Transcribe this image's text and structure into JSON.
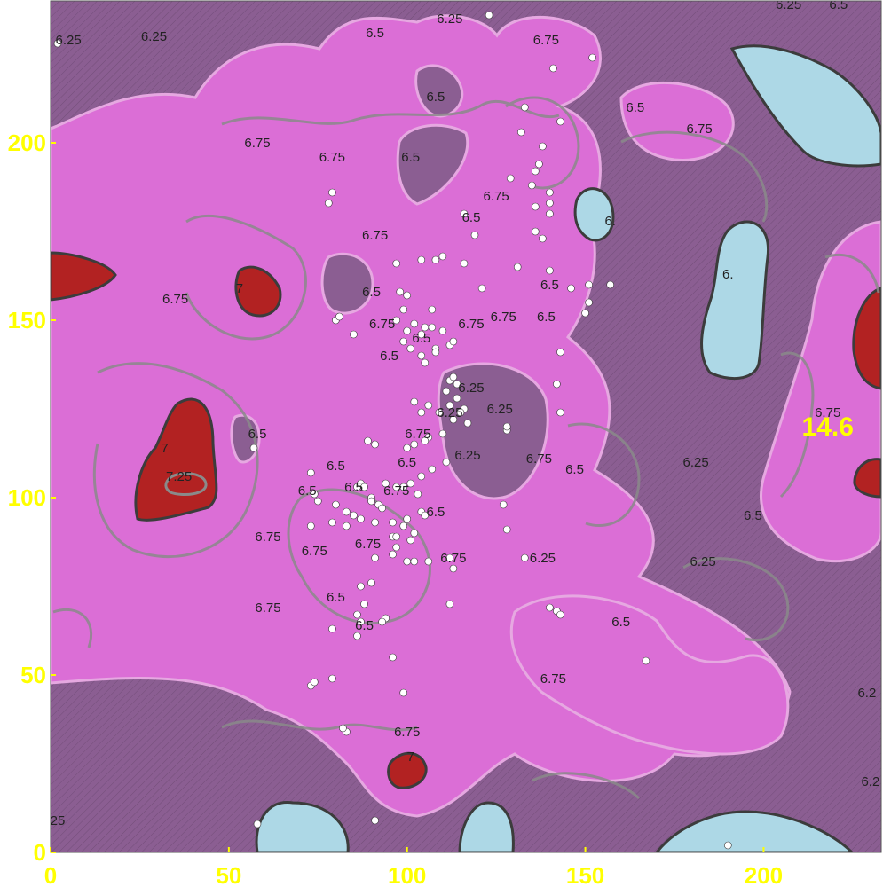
{
  "chart_data": {
    "type": "heatmap",
    "title": "",
    "xlabel": "",
    "ylabel": "",
    "xlim": [
      0,
      233
    ],
    "ylim": [
      0,
      240
    ],
    "x_ticks": [
      "0",
      "50",
      "100",
      "150",
      "200"
    ],
    "y_ticks": [
      "0",
      "50",
      "100",
      "150",
      "200"
    ],
    "annotation": {
      "text": "14.6",
      "x": 218,
      "y": 120
    },
    "colors": {
      "level_6": "#add8e6",
      "level_6_25": "#8b5e92",
      "level_6_5": "#db6ed6",
      "level_7": "#b22222",
      "contour_light": "#e6a8e1",
      "contour_gray": "#8a8a8a",
      "contour_dark": "#3c3c3c",
      "tick_label": "#ffff00",
      "points": "#ffffff"
    },
    "contour_levels": [
      "6",
      "6.25",
      "6.5",
      "6.75",
      "7",
      "7.25"
    ],
    "contour_labels": [
      {
        "text": "6.25",
        "x": 5,
        "y": 229
      },
      {
        "text": "6.25",
        "x": 29,
        "y": 230
      },
      {
        "text": "6.5",
        "x": 91,
        "y": 231
      },
      {
        "text": "6.25",
        "x": 112,
        "y": 235
      },
      {
        "text": "6.75",
        "x": 139,
        "y": 229
      },
      {
        "text": "6.5",
        "x": 108,
        "y": 213
      },
      {
        "text": "6.5",
        "x": 164,
        "y": 210
      },
      {
        "text": "6.75",
        "x": 182,
        "y": 204
      },
      {
        "text": "6.75",
        "x": 58,
        "y": 200
      },
      {
        "text": "6.75",
        "x": 79,
        "y": 196
      },
      {
        "text": "6.5",
        "x": 101,
        "y": 196
      },
      {
        "text": "6.75",
        "x": 125,
        "y": 185
      },
      {
        "text": "6.5",
        "x": 118,
        "y": 179
      },
      {
        "text": "6.",
        "x": 157,
        "y": 178
      },
      {
        "text": "6.75",
        "x": 91,
        "y": 174
      },
      {
        "text": "6.",
        "x": 190,
        "y": 163
      },
      {
        "text": "7",
        "x": 53,
        "y": 159
      },
      {
        "text": "6.75",
        "x": 35,
        "y": 156
      },
      {
        "text": "6.5",
        "x": 90,
        "y": 158
      },
      {
        "text": "6.5",
        "x": 140,
        "y": 160
      },
      {
        "text": "6.75",
        "x": 93,
        "y": 149
      },
      {
        "text": "6.75",
        "x": 118,
        "y": 149
      },
      {
        "text": "6.75",
        "x": 127,
        "y": 151
      },
      {
        "text": "6.5",
        "x": 139,
        "y": 151
      },
      {
        "text": "6.5",
        "x": 104,
        "y": 145
      },
      {
        "text": "6.5",
        "x": 95,
        "y": 140
      },
      {
        "text": "6.25",
        "x": 118,
        "y": 131
      },
      {
        "text": "6.25",
        "x": 112,
        "y": 124
      },
      {
        "text": "6.25",
        "x": 126,
        "y": 125
      },
      {
        "text": "6.75",
        "x": 218,
        "y": 124
      },
      {
        "text": "6.5",
        "x": 58,
        "y": 118
      },
      {
        "text": "6.75",
        "x": 103,
        "y": 118
      },
      {
        "text": "7",
        "x": 32,
        "y": 114
      },
      {
        "text": "6.25",
        "x": 117,
        "y": 112
      },
      {
        "text": "6.75",
        "x": 137,
        "y": 111
      },
      {
        "text": "6.5",
        "x": 100,
        "y": 110
      },
      {
        "text": "6.5",
        "x": 80,
        "y": 109
      },
      {
        "text": "6.5",
        "x": 147,
        "y": 108
      },
      {
        "text": "6.25",
        "x": 181,
        "y": 110
      },
      {
        "text": "7.25",
        "x": 36,
        "y": 106
      },
      {
        "text": "6.5",
        "x": 72,
        "y": 102
      },
      {
        "text": "6.5",
        "x": 85,
        "y": 103
      },
      {
        "text": "6.75",
        "x": 97,
        "y": 102
      },
      {
        "text": "6.5",
        "x": 108,
        "y": 96
      },
      {
        "text": "6.5",
        "x": 197,
        "y": 95
      },
      {
        "text": "6.75",
        "x": 61,
        "y": 89
      },
      {
        "text": "6.75",
        "x": 89,
        "y": 87
      },
      {
        "text": "6.75",
        "x": 74,
        "y": 85
      },
      {
        "text": "6.75",
        "x": 113,
        "y": 83
      },
      {
        "text": "6.25",
        "x": 138,
        "y": 83
      },
      {
        "text": "6.25",
        "x": 183,
        "y": 82
      },
      {
        "text": "6.5",
        "x": 80,
        "y": 72
      },
      {
        "text": "6.75",
        "x": 61,
        "y": 69
      },
      {
        "text": "6.5",
        "x": 88,
        "y": 64
      },
      {
        "text": "6.5",
        "x": 160,
        "y": 65
      },
      {
        "text": "6.75",
        "x": 141,
        "y": 49
      },
      {
        "text": "6.75",
        "x": 100,
        "y": 34
      },
      {
        "text": "7",
        "x": 101,
        "y": 27
      },
      {
        "text": "6.2",
        "x": 229,
        "y": 45
      },
      {
        "text": "6.2",
        "x": 230,
        "y": 20
      },
      {
        "text": "25",
        "x": 2,
        "y": 9
      },
      {
        "text": "6.25",
        "x": 207,
        "y": 239
      },
      {
        "text": "6.5",
        "x": 221,
        "y": 239
      }
    ],
    "points": [
      [
        2,
        228
      ],
      [
        123,
        236
      ],
      [
        141,
        221
      ],
      [
        152,
        224
      ],
      [
        133,
        210
      ],
      [
        143,
        206
      ],
      [
        132,
        203
      ],
      [
        138,
        199
      ],
      [
        136,
        192
      ],
      [
        137,
        194
      ],
      [
        135,
        188
      ],
      [
        140,
        186
      ],
      [
        129,
        190
      ],
      [
        140,
        183
      ],
      [
        140,
        180
      ],
      [
        136,
        182
      ],
      [
        79,
        186
      ],
      [
        78,
        183
      ],
      [
        116,
        180
      ],
      [
        119,
        174
      ],
      [
        136,
        175
      ],
      [
        138,
        173
      ],
      [
        108,
        167
      ],
      [
        110,
        168
      ],
      [
        116,
        166
      ],
      [
        121,
        159
      ],
      [
        131,
        165
      ],
      [
        140,
        164
      ],
      [
        146,
        159
      ],
      [
        151,
        160
      ],
      [
        150,
        152
      ],
      [
        151,
        155
      ],
      [
        157,
        160
      ],
      [
        97,
        166
      ],
      [
        104,
        167
      ],
      [
        98,
        158
      ],
      [
        100,
        157
      ],
      [
        107,
        153
      ],
      [
        97,
        150
      ],
      [
        99,
        153
      ],
      [
        100,
        147
      ],
      [
        102,
        149
      ],
      [
        104,
        146
      ],
      [
        105,
        148
      ],
      [
        99,
        144
      ],
      [
        101,
        142
      ],
      [
        104,
        140
      ],
      [
        108,
        142
      ],
      [
        108,
        141
      ],
      [
        105,
        138
      ],
      [
        110,
        147
      ],
      [
        112,
        143
      ],
      [
        113,
        144
      ],
      [
        107,
        148
      ],
      [
        80,
        150
      ],
      [
        81,
        151
      ],
      [
        85,
        146
      ],
      [
        143,
        141
      ],
      [
        142,
        132
      ],
      [
        112,
        133
      ],
      [
        113,
        134
      ],
      [
        114,
        132
      ],
      [
        111,
        130
      ],
      [
        112,
        126
      ],
      [
        114,
        128
      ],
      [
        116,
        125
      ],
      [
        102,
        127
      ],
      [
        104,
        124
      ],
      [
        106,
        126
      ],
      [
        109,
        124
      ],
      [
        113,
        122
      ],
      [
        115,
        124
      ],
      [
        117,
        121
      ],
      [
        128,
        119
      ],
      [
        128,
        120
      ],
      [
        106,
        117
      ],
      [
        110,
        118
      ],
      [
        102,
        115
      ],
      [
        105,
        116
      ],
      [
        100,
        114
      ],
      [
        89,
        116
      ],
      [
        91,
        115
      ],
      [
        57,
        114
      ],
      [
        143,
        124
      ],
      [
        73,
        107
      ],
      [
        74,
        101
      ],
      [
        75,
        99
      ],
      [
        80,
        98
      ],
      [
        83,
        96
      ],
      [
        86,
        103
      ],
      [
        87,
        104
      ],
      [
        88,
        103
      ],
      [
        90,
        100
      ],
      [
        90,
        99
      ],
      [
        94,
        104
      ],
      [
        97,
        103
      ],
      [
        99,
        103
      ],
      [
        101,
        104
      ],
      [
        103,
        101
      ],
      [
        104,
        106
      ],
      [
        107,
        108
      ],
      [
        111,
        110
      ],
      [
        92,
        98
      ],
      [
        93,
        97
      ],
      [
        85,
        95
      ],
      [
        87,
        94
      ],
      [
        91,
        93
      ],
      [
        96,
        93
      ],
      [
        99,
        92
      ],
      [
        100,
        94
      ],
      [
        104,
        96
      ],
      [
        105,
        95
      ],
      [
        102,
        90
      ],
      [
        73,
        92
      ],
      [
        79,
        93
      ],
      [
        83,
        92
      ],
      [
        96,
        89
      ],
      [
        97,
        89
      ],
      [
        101,
        88
      ],
      [
        97,
        86
      ],
      [
        91,
        83
      ],
      [
        96,
        84
      ],
      [
        100,
        82
      ],
      [
        102,
        82
      ],
      [
        106,
        82
      ],
      [
        112,
        83
      ],
      [
        113,
        80
      ],
      [
        128,
        91
      ],
      [
        127,
        98
      ],
      [
        133,
        83
      ],
      [
        87,
        75
      ],
      [
        90,
        76
      ],
      [
        88,
        70
      ],
      [
        87,
        65
      ],
      [
        86,
        67
      ],
      [
        86,
        61
      ],
      [
        94,
        66
      ],
      [
        93,
        65
      ],
      [
        79,
        63
      ],
      [
        112,
        70
      ],
      [
        96,
        55
      ],
      [
        79,
        49
      ],
      [
        73,
        47
      ],
      [
        74,
        48
      ],
      [
        99,
        45
      ],
      [
        83,
        34
      ],
      [
        82,
        35
      ],
      [
        91,
        9
      ],
      [
        58,
        8
      ],
      [
        140,
        69
      ],
      [
        142,
        68
      ],
      [
        143,
        67
      ],
      [
        167,
        54
      ],
      [
        190,
        2
      ]
    ]
  }
}
